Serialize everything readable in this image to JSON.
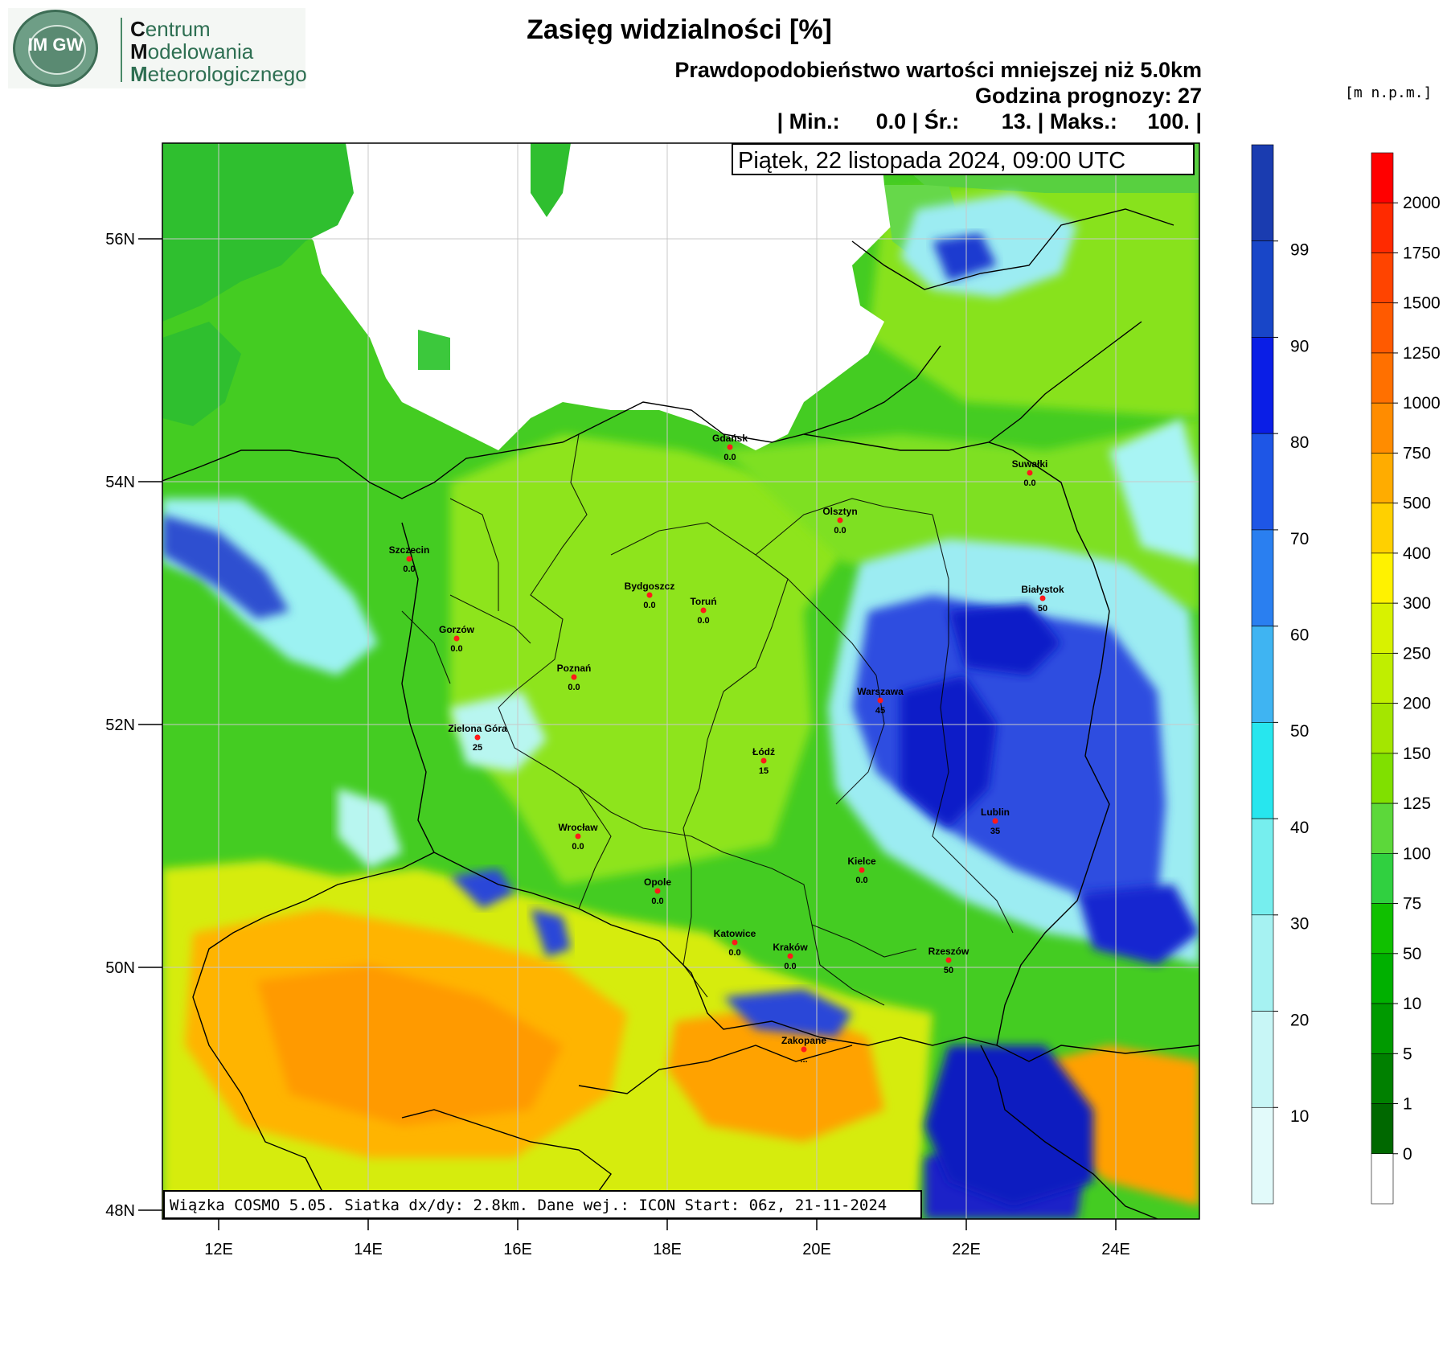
{
  "header": {
    "title": "Zasięg widzialności [%]",
    "line1": "Prawdopodobieństwo wartości mniejszej niż 5.0km",
    "line2": "Godzina prognozy: 27",
    "line3": "| Min.:      0.0 | Śr.:       13. | Maks.:     100. |",
    "datetime": "Piątek, 22 listopada 2024, 09:00 UTC"
  },
  "logo": {
    "abbr": "IM GW",
    "line1_initial": "C",
    "line1_rest": "entrum",
    "line2_initial": "M",
    "line2_rest": "odelowania",
    "line3_initial": "M",
    "line3_rest": "eteorologicznego"
  },
  "footer": "Wiązka COSMO 5.05. Siatka dx/dy: 2.8km. Dane wej.: ICON Start: 06z, 21-11-2024",
  "axes": {
    "lat_labels": [
      "56N",
      "54N",
      "52N",
      "50N",
      "48N"
    ],
    "lon_labels": [
      "12E",
      "14E",
      "16E",
      "18E",
      "20E",
      "22E",
      "24E"
    ]
  },
  "probability_scale": {
    "labels": [
      "99",
      "90",
      "80",
      "70",
      "60",
      "50",
      "40",
      "30",
      "20",
      "10"
    ],
    "colors": [
      "#1a3cb0",
      "#1846c8",
      "#0a1ee6",
      "#1e56e6",
      "#2a7ff0",
      "#3fb4f2",
      "#27e6ee",
      "#76eeee",
      "#a6f2f2",
      "#c8f6f6",
      "#e2fafa"
    ]
  },
  "elevation_scale": {
    "unit": "[m n.p.m.]",
    "labels": [
      "2000",
      "1750",
      "1500",
      "1250",
      "1000",
      "750",
      "500",
      "400",
      "300",
      "250",
      "200",
      "150",
      "125",
      "100",
      "75",
      "50",
      "10",
      "5",
      "1",
      "0"
    ],
    "colors": [
      "#ff0000",
      "#ff2a00",
      "#ff4400",
      "#ff5a00",
      "#ff7000",
      "#ff8c00",
      "#ffac00",
      "#ffd000",
      "#fff200",
      "#d8f200",
      "#c0ee00",
      "#a4e600",
      "#80e000",
      "#5cd83a",
      "#30d040",
      "#10c000",
      "#00b000",
      "#009a00",
      "#008000",
      "#006800",
      "#ffffff"
    ]
  },
  "cities": [
    {
      "name": "Gdańsk",
      "value": "0.0"
    },
    {
      "name": "Suwałki",
      "value": "0.0"
    },
    {
      "name": "Olsztyn",
      "value": "0.0"
    },
    {
      "name": "Szczecin",
      "value": "0.0"
    },
    {
      "name": "Bydgoszcz",
      "value": "0.0"
    },
    {
      "name": "Toruń",
      "value": "0.0"
    },
    {
      "name": "Białystok",
      "value": "50"
    },
    {
      "name": "Gorzów",
      "value": "0.0"
    },
    {
      "name": "Poznań",
      "value": "0.0"
    },
    {
      "name": "Warszawa",
      "value": "45"
    },
    {
      "name": "Zielona Góra",
      "value": "25"
    },
    {
      "name": "Łódź",
      "value": "15"
    },
    {
      "name": "Lublin",
      "value": "35"
    },
    {
      "name": "Wrocław",
      "value": "0.0"
    },
    {
      "name": "Kielce",
      "value": "0.0"
    },
    {
      "name": "Opole",
      "value": "0.0"
    },
    {
      "name": "Katowice",
      "value": "0.0"
    },
    {
      "name": "Kraków",
      "value": "0.0"
    },
    {
      "name": "Rzeszów",
      "value": "50"
    },
    {
      "name": "Zakopane",
      "value": "..."
    }
  ]
}
